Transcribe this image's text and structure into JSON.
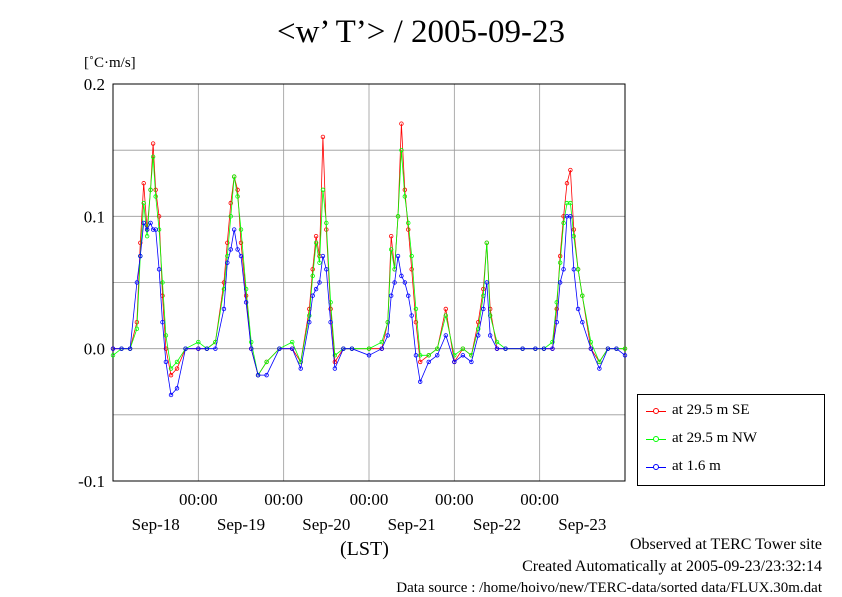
{
  "title": "<w’ T’> / 2005-09-23",
  "unit_label": "[˚C·m/s]",
  "x_axis_label": "(LST)",
  "footer": {
    "site": "Observed at TERC Tower site",
    "created": "Created Automatically at 2005-09-23/23:32:14",
    "source": "Data source : /home/hoivo/new/TERC-data/sorted  data/FLUX.30m.dat"
  },
  "legend": [
    {
      "label": "at 29.5 m SE",
      "color": "#ff0000"
    },
    {
      "label": "at 29.5 m NW",
      "color": "#00ff00"
    },
    {
      "label": "at 1.6 m",
      "color": "#0000ff"
    }
  ],
  "chart_data": {
    "type": "line",
    "title": "<w’ T’> / 2005-09-23",
    "ylabel": "[˚C·m/s]",
    "xlabel": "(LST)",
    "ylim": [
      -0.1,
      0.2
    ],
    "yticks": [
      -0.1,
      0.0,
      0.1,
      0.2
    ],
    "ytick_labels": [
      "-0.1",
      "0.0",
      "0.1",
      "0.2"
    ],
    "xlim": [
      0,
      6
    ],
    "xtick_labels": [
      "00:00",
      "00:00",
      "00:00",
      "00:00",
      "00:00"
    ],
    "date_labels": [
      "Sep-18",
      "Sep-19",
      "Sep-20",
      "Sep-21",
      "Sep-22",
      "Sep-23"
    ],
    "grid": true,
    "legend_position": "right",
    "series": [
      {
        "name": "at 29.5 m SE",
        "color": "#ff0000",
        "x": [
          0.0,
          0.1,
          0.2,
          0.28,
          0.32,
          0.36,
          0.4,
          0.44,
          0.47,
          0.5,
          0.54,
          0.58,
          0.62,
          0.68,
          0.75,
          0.85,
          1.0,
          1.1,
          1.2,
          1.3,
          1.34,
          1.38,
          1.42,
          1.46,
          1.5,
          1.56,
          1.62,
          1.7,
          1.8,
          1.95,
          2.1,
          2.2,
          2.3,
          2.34,
          2.38,
          2.42,
          2.46,
          2.5,
          2.55,
          2.6,
          2.7,
          2.8,
          3.0,
          3.15,
          3.22,
          3.26,
          3.3,
          3.34,
          3.38,
          3.42,
          3.46,
          3.5,
          3.55,
          3.6,
          3.7,
          3.8,
          3.9,
          4.0,
          4.1,
          4.2,
          4.28,
          4.34,
          4.38,
          4.42,
          4.5,
          4.6,
          4.8,
          4.95,
          5.05,
          5.15,
          5.2,
          5.24,
          5.28,
          5.32,
          5.36,
          5.4,
          5.45,
          5.5,
          5.6,
          5.7,
          5.8,
          5.9,
          6.0
        ],
        "y": [
          0.0,
          0.0,
          0.0,
          0.02,
          0.08,
          0.125,
          0.09,
          0.12,
          0.155,
          0.12,
          0.1,
          0.04,
          0.0,
          -0.02,
          -0.015,
          0.0,
          0.0,
          0.0,
          0.005,
          0.05,
          0.08,
          0.11,
          0.13,
          0.12,
          0.08,
          0.04,
          0.0,
          -0.02,
          -0.01,
          0.0,
          0.0,
          -0.01,
          0.03,
          0.06,
          0.085,
          0.07,
          0.16,
          0.09,
          0.03,
          -0.01,
          0.0,
          0.0,
          0.0,
          0.0,
          0.02,
          0.085,
          0.06,
          0.1,
          0.17,
          0.12,
          0.09,
          0.06,
          0.02,
          -0.01,
          -0.005,
          0.0,
          0.03,
          -0.01,
          0.0,
          -0.005,
          0.02,
          0.045,
          0.08,
          0.03,
          0.0,
          0.0,
          0.0,
          0.0,
          0.0,
          0.0,
          0.03,
          0.07,
          0.1,
          0.125,
          0.135,
          0.09,
          0.06,
          0.04,
          0.0,
          -0.01,
          0.0,
          0.0,
          0.0
        ]
      },
      {
        "name": "at 29.5 m NW",
        "color": "#00ff00",
        "x": [
          0.0,
          0.1,
          0.2,
          0.28,
          0.32,
          0.36,
          0.4,
          0.44,
          0.47,
          0.5,
          0.54,
          0.58,
          0.62,
          0.68,
          0.75,
          0.85,
          1.0,
          1.1,
          1.2,
          1.3,
          1.34,
          1.38,
          1.42,
          1.46,
          1.5,
          1.56,
          1.62,
          1.7,
          1.8,
          1.95,
          2.1,
          2.2,
          2.3,
          2.34,
          2.38,
          2.42,
          2.46,
          2.5,
          2.55,
          2.6,
          2.7,
          2.8,
          3.0,
          3.15,
          3.22,
          3.26,
          3.3,
          3.34,
          3.38,
          3.42,
          3.46,
          3.5,
          3.55,
          3.6,
          3.7,
          3.8,
          3.9,
          4.0,
          4.1,
          4.2,
          4.28,
          4.34,
          4.38,
          4.42,
          4.5,
          4.6,
          4.8,
          4.95,
          5.05,
          5.15,
          5.2,
          5.24,
          5.28,
          5.32,
          5.36,
          5.4,
          5.45,
          5.5,
          5.6,
          5.7,
          5.8,
          5.9,
          6.0
        ],
        "y": [
          -0.005,
          0.0,
          0.0,
          0.015,
          0.07,
          0.11,
          0.085,
          0.12,
          0.145,
          0.115,
          0.09,
          0.05,
          0.01,
          -0.015,
          -0.01,
          0.0,
          0.005,
          0.0,
          0.005,
          0.045,
          0.07,
          0.1,
          0.13,
          0.115,
          0.09,
          0.045,
          0.005,
          -0.02,
          -0.01,
          0.0,
          0.005,
          -0.01,
          0.025,
          0.055,
          0.08,
          0.065,
          0.12,
          0.095,
          0.035,
          -0.005,
          0.0,
          0.0,
          0.0,
          0.005,
          0.02,
          0.075,
          0.06,
          0.1,
          0.15,
          0.115,
          0.095,
          0.07,
          0.03,
          -0.005,
          -0.005,
          0.0,
          0.025,
          -0.005,
          0.0,
          -0.005,
          0.015,
          0.04,
          0.08,
          0.025,
          0.005,
          0.0,
          0.0,
          0.0,
          0.0,
          0.005,
          0.035,
          0.065,
          0.095,
          0.11,
          0.11,
          0.085,
          0.06,
          0.04,
          0.005,
          -0.01,
          0.0,
          0.0,
          0.0
        ]
      },
      {
        "name": "at 1.6 m",
        "color": "#0000ff",
        "x": [
          0.0,
          0.1,
          0.2,
          0.28,
          0.32,
          0.36,
          0.4,
          0.44,
          0.47,
          0.5,
          0.54,
          0.58,
          0.62,
          0.68,
          0.75,
          0.85,
          1.0,
          1.1,
          1.2,
          1.3,
          1.34,
          1.38,
          1.42,
          1.46,
          1.5,
          1.56,
          1.62,
          1.7,
          1.8,
          1.95,
          2.1,
          2.2,
          2.3,
          2.34,
          2.38,
          2.42,
          2.46,
          2.5,
          2.55,
          2.6,
          2.7,
          2.8,
          3.0,
          3.15,
          3.22,
          3.26,
          3.3,
          3.34,
          3.38,
          3.42,
          3.46,
          3.5,
          3.55,
          3.6,
          3.7,
          3.8,
          3.9,
          4.0,
          4.1,
          4.2,
          4.28,
          4.34,
          4.38,
          4.42,
          4.5,
          4.6,
          4.8,
          4.95,
          5.05,
          5.15,
          5.2,
          5.24,
          5.28,
          5.32,
          5.36,
          5.4,
          5.45,
          5.5,
          5.6,
          5.7,
          5.8,
          5.9,
          6.0
        ],
        "y": [
          0.0,
          0.0,
          0.0,
          0.05,
          0.07,
          0.095,
          0.09,
          0.095,
          0.09,
          0.09,
          0.06,
          0.02,
          -0.01,
          -0.035,
          -0.03,
          0.0,
          0.0,
          0.0,
          0.0,
          0.03,
          0.065,
          0.075,
          0.09,
          0.075,
          0.07,
          0.035,
          0.0,
          -0.02,
          -0.02,
          0.0,
          0.0,
          -0.015,
          0.02,
          0.04,
          0.045,
          0.05,
          0.07,
          0.06,
          0.02,
          -0.015,
          0.0,
          0.0,
          -0.005,
          0.0,
          0.01,
          0.04,
          0.05,
          0.07,
          0.055,
          0.05,
          0.04,
          0.025,
          -0.005,
          -0.025,
          -0.01,
          -0.005,
          0.01,
          -0.01,
          -0.005,
          -0.01,
          0.01,
          0.03,
          0.05,
          0.01,
          0.0,
          0.0,
          0.0,
          0.0,
          0.0,
          0.0,
          0.02,
          0.05,
          0.06,
          0.1,
          0.1,
          0.06,
          0.03,
          0.02,
          0.0,
          -0.015,
          0.0,
          0.0,
          -0.005
        ]
      }
    ]
  }
}
